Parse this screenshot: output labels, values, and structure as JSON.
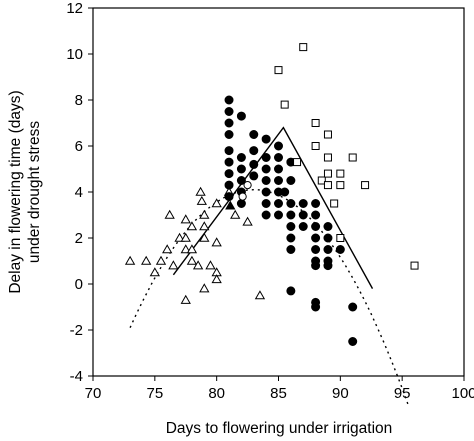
{
  "chart_data": {
    "type": "scatter",
    "title": "",
    "xlabel": "Days to flowering under irrigation",
    "ylabel": [
      "Delay in flowering time (days)",
      "under drought stress"
    ],
    "xlim": [
      70,
      100
    ],
    "ylim": [
      -4,
      12
    ],
    "xticks": [
      70,
      75,
      80,
      85,
      90,
      95,
      100
    ],
    "xtick_labels": [
      "70",
      "75",
      "80",
      "85",
      "90",
      "95",
      "100"
    ],
    "yticks": [
      -4,
      -2,
      0,
      2,
      4,
      6,
      8,
      10,
      12
    ],
    "ytick_labels": [
      "-4",
      "-2",
      "0",
      "2",
      "4",
      "6",
      "8",
      "10",
      "12"
    ],
    "grid": false,
    "legend": "none",
    "series": [
      {
        "marker": "open-triangle",
        "points": [
          [
            73,
            1.0
          ],
          [
            74.3,
            1.0
          ],
          [
            75,
            0.5
          ],
          [
            75.5,
            1.0
          ],
          [
            76,
            1.5
          ],
          [
            76.2,
            3.0
          ],
          [
            76.5,
            0.8
          ],
          [
            77,
            2.0
          ],
          [
            77.5,
            2.8
          ],
          [
            77.5,
            2.0
          ],
          [
            77.5,
            1.5
          ],
          [
            77.5,
            -0.7
          ],
          [
            78,
            1.0
          ],
          [
            78,
            1.5
          ],
          [
            78,
            2.5
          ],
          [
            78.5,
            0.8
          ],
          [
            78.7,
            4.0
          ],
          [
            78.8,
            3.6
          ],
          [
            79,
            2.5
          ],
          [
            79,
            2.0
          ],
          [
            79,
            3.0
          ],
          [
            79,
            -0.2
          ],
          [
            79.5,
            0.8
          ],
          [
            80,
            1.8
          ],
          [
            80,
            0.5
          ],
          [
            80,
            0.2
          ],
          [
            80,
            3.5
          ],
          [
            81,
            4.0
          ],
          [
            81.5,
            3.0
          ],
          [
            82.5,
            2.7
          ],
          [
            83.5,
            -0.5
          ]
        ]
      },
      {
        "marker": "filled-circle",
        "points": [
          [
            81,
            8.0
          ],
          [
            81,
            7.5
          ],
          [
            81,
            7.0
          ],
          [
            81,
            6.5
          ],
          [
            81,
            5.8
          ],
          [
            81,
            5.3
          ],
          [
            81,
            4.8
          ],
          [
            81,
            4.3
          ],
          [
            81,
            3.8
          ],
          [
            82,
            7.3
          ],
          [
            82,
            5.5
          ],
          [
            82,
            5.0
          ],
          [
            82,
            4.5
          ],
          [
            82,
            4.0
          ],
          [
            82,
            3.5
          ],
          [
            83,
            6.5
          ],
          [
            83,
            5.8
          ],
          [
            83,
            5.2
          ],
          [
            83,
            4.7
          ],
          [
            84,
            6.3
          ],
          [
            84,
            5.5
          ],
          [
            84,
            5.0
          ],
          [
            84,
            4.5
          ],
          [
            84,
            4.0
          ],
          [
            84,
            3.5
          ],
          [
            84,
            3.0
          ],
          [
            85,
            6.0
          ],
          [
            85,
            5.5
          ],
          [
            85,
            5.0
          ],
          [
            85,
            4.5
          ],
          [
            85,
            4.0
          ],
          [
            85,
            3.5
          ],
          [
            85,
            3.0
          ],
          [
            85.5,
            4.0
          ],
          [
            86,
            5.3
          ],
          [
            86,
            4.5
          ],
          [
            86,
            3.5
          ],
          [
            86,
            3.0
          ],
          [
            86,
            2.5
          ],
          [
            86,
            2.0
          ],
          [
            86,
            1.5
          ],
          [
            86,
            -0.3
          ],
          [
            87,
            3.5
          ],
          [
            87,
            3.0
          ],
          [
            87,
            2.5
          ],
          [
            88,
            3.5
          ],
          [
            88,
            3.0
          ],
          [
            88,
            2.5
          ],
          [
            88,
            2.0
          ],
          [
            88,
            1.5
          ],
          [
            88,
            1.0
          ],
          [
            88,
            0.8
          ],
          [
            88,
            -0.8
          ],
          [
            88,
            -1.0
          ],
          [
            89,
            2.5
          ],
          [
            89,
            2.0
          ],
          [
            89,
            1.5
          ],
          [
            89,
            1.0
          ],
          [
            89,
            0.8
          ],
          [
            90,
            1.5
          ],
          [
            91,
            -1.0
          ],
          [
            91,
            -2.5
          ]
        ]
      },
      {
        "marker": "open-square",
        "points": [
          [
            85,
            9.3
          ],
          [
            85.5,
            7.8
          ],
          [
            87,
            10.3
          ],
          [
            86.5,
            5.3
          ],
          [
            88,
            7.0
          ],
          [
            88,
            6.0
          ],
          [
            88.5,
            4.5
          ],
          [
            89,
            6.5
          ],
          [
            89,
            5.5
          ],
          [
            89,
            4.8
          ],
          [
            89,
            4.3
          ],
          [
            89.5,
            3.5
          ],
          [
            90,
            4.8
          ],
          [
            90,
            4.3
          ],
          [
            90,
            2.0
          ],
          [
            91,
            5.5
          ],
          [
            92,
            4.3
          ],
          [
            96,
            0.8
          ]
        ]
      },
      {
        "marker": "open-circle",
        "points": [
          [
            82.5,
            4.3
          ],
          [
            82.1,
            3.8
          ]
        ]
      },
      {
        "marker": "filled-triangle",
        "points": [
          [
            81.1,
            3.4
          ]
        ]
      }
    ],
    "fits": [
      {
        "style": "solid",
        "points": [
          [
            76.5,
            0.4
          ],
          [
            85.4,
            6.8
          ],
          [
            92.6,
            -0.2
          ]
        ]
      },
      {
        "style": "dotted",
        "x_range": [
          73,
          95.5
        ],
        "x_peak": 83,
        "y_peak": 4.1,
        "curvature": -0.06
      }
    ]
  }
}
